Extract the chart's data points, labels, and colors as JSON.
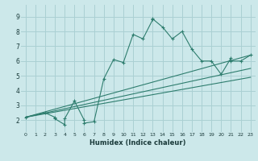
{
  "xlabel": "Humidex (Indice chaleur)",
  "ylabel": "",
  "bg_color": "#cce8ea",
  "grid_color": "#aad0d3",
  "line_color": "#2e7d6e",
  "xlim": [
    -0.5,
    23.5
  ],
  "ylim": [
    1.2,
    9.8
  ],
  "xticks": [
    0,
    1,
    2,
    3,
    4,
    5,
    6,
    7,
    8,
    9,
    10,
    11,
    12,
    13,
    14,
    15,
    16,
    17,
    18,
    19,
    20,
    21,
    22,
    23
  ],
  "yticks": [
    2,
    3,
    4,
    5,
    6,
    7,
    8,
    9
  ],
  "main_x": [
    0,
    2,
    3,
    3,
    4,
    4,
    5,
    6,
    6,
    7,
    8,
    9,
    10,
    11,
    12,
    13,
    13,
    14,
    15,
    16,
    17,
    18,
    19,
    20,
    21,
    21,
    22,
    23
  ],
  "main_y": [
    2.2,
    2.5,
    2.2,
    2.1,
    1.7,
    2.1,
    3.3,
    2.0,
    1.8,
    1.9,
    4.8,
    6.1,
    5.9,
    7.8,
    7.5,
    8.8,
    8.85,
    8.3,
    7.5,
    8.0,
    6.8,
    6.0,
    6.0,
    5.1,
    6.2,
    6.0,
    6.0,
    6.4
  ],
  "line1_x": [
    0,
    23
  ],
  "line1_y": [
    2.2,
    6.4
  ],
  "line2_x": [
    0,
    23
  ],
  "line2_y": [
    2.2,
    5.5
  ],
  "line3_x": [
    0,
    23
  ],
  "line3_y": [
    2.2,
    4.9
  ]
}
